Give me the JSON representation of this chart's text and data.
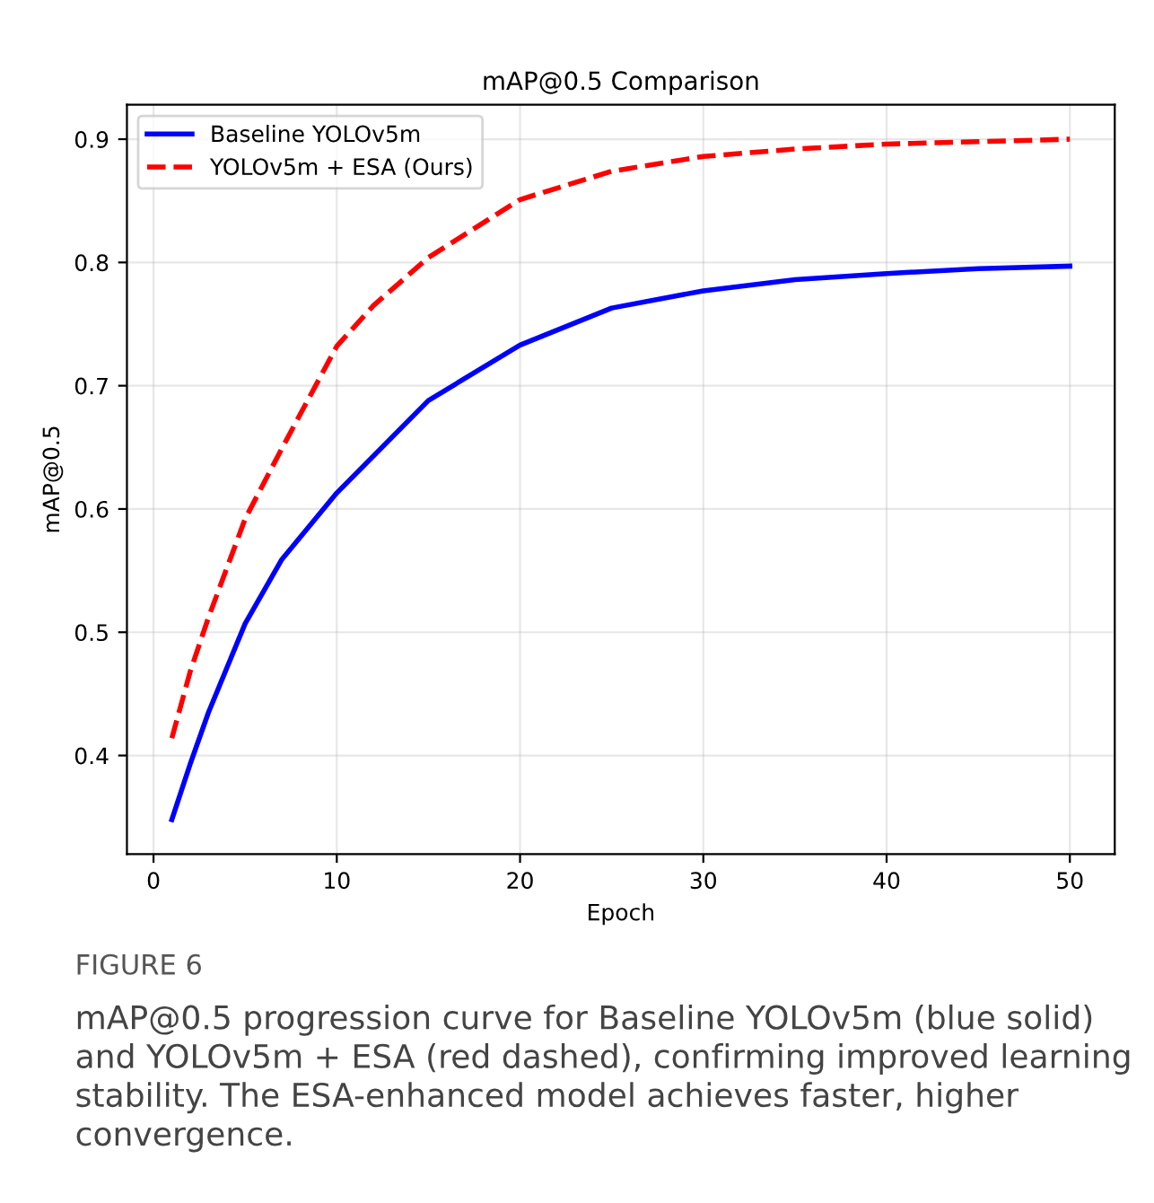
{
  "chart_data": {
    "type": "line",
    "title": "mAP@0.5 Comparison",
    "xlabel": "Epoch",
    "ylabel": "mAP@0.5",
    "annotations": [
      "FIGURE 6",
      "mAP@0.5 progression curve for Baseline YOLOv5m (blue solid) and YOLOv5m + ESA (red dashed), confirming improved learning stability. The ESA-enhanced model achieves faster, higher convergence."
    ],
    "series": [
      {
        "name": "Baseline YOLOv5m",
        "color": "#0000ff",
        "line_style": "solid",
        "x": [
          1,
          2,
          3,
          5,
          7,
          10,
          15,
          20,
          25,
          30,
          35,
          40,
          45,
          50
        ],
        "values": [
          0.348,
          0.393,
          0.435,
          0.507,
          0.559,
          0.613,
          0.688,
          0.733,
          0.763,
          0.777,
          0.786,
          0.791,
          0.795,
          0.797
        ]
      },
      {
        "name": "YOLOv5m + ESA (Ours)",
        "color": "#ff0000",
        "line_style": "dashed",
        "x": [
          1,
          2,
          3,
          5,
          7,
          10,
          12,
          15,
          20,
          25,
          30,
          35,
          40,
          45,
          50
        ],
        "values": [
          0.414,
          0.468,
          0.512,
          0.592,
          0.649,
          0.732,
          0.765,
          0.804,
          0.851,
          0.874,
          0.886,
          0.892,
          0.896,
          0.898,
          0.9
        ]
      }
    ],
    "xlim": [
      -1.45,
      52.45
    ],
    "ylim": [
      0.32,
      0.928
    ],
    "xticks": [
      0,
      10,
      20,
      30,
      40,
      50
    ],
    "yticks": [
      0.4,
      0.5,
      0.6,
      0.7,
      0.8,
      0.9
    ],
    "grid": true,
    "legend": "top left",
    "marker": "none"
  }
}
